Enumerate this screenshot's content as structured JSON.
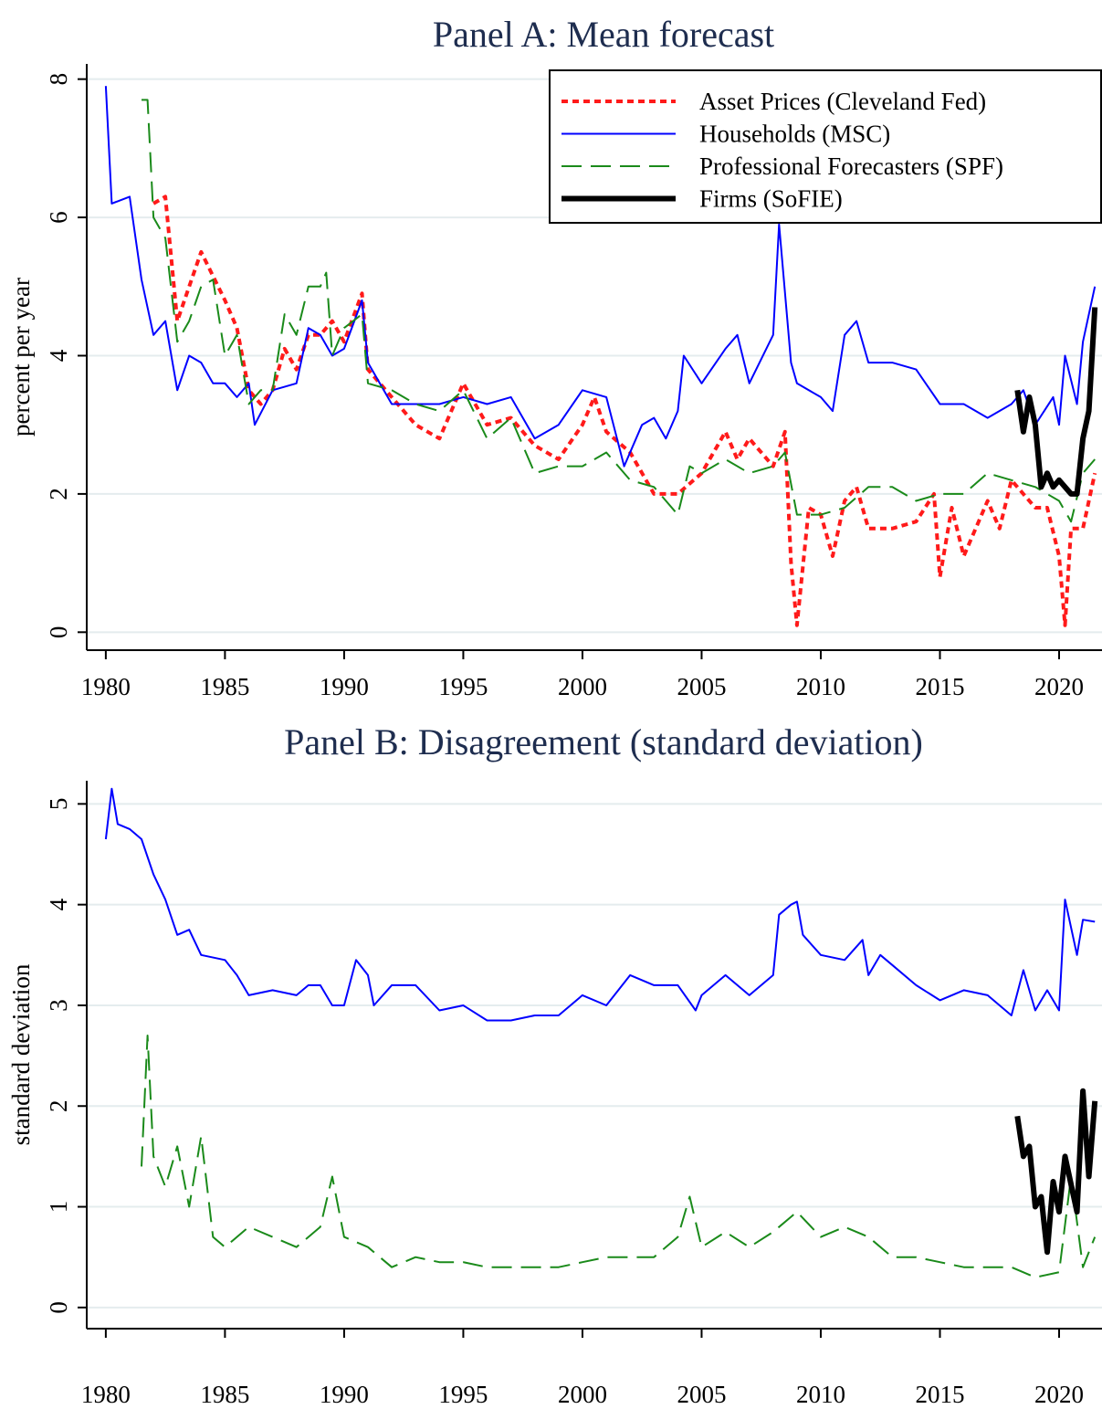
{
  "chart_data": [
    {
      "type": "line",
      "title": "Panel A: Mean forecast",
      "ylabel": "percent per year",
      "xlim": [
        1979.2,
        2021.8
      ],
      "xticks": [
        1980,
        1985,
        1990,
        1995,
        2000,
        2005,
        2010,
        2015,
        2020
      ],
      "ylim": [
        -0.26,
        8.22
      ],
      "yticks": [
        0,
        2,
        4,
        6,
        8
      ],
      "grid": true,
      "legend": "top-right",
      "series": [
        {
          "name": "Asset Prices (Cleveland Fed)",
          "color": "#ff1a1a",
          "linestyle": "dotted",
          "linewidth": 4,
          "x": [
            1982,
            1982.5,
            1983,
            1983.5,
            1984,
            1985,
            1985.5,
            1986,
            1986.5,
            1987,
            1987.5,
            1988,
            1988.5,
            1989,
            1989.5,
            1990,
            1990.75,
            1991,
            1992,
            1993,
            1994,
            1995,
            1996,
            1997,
            1998,
            1999,
            2000,
            2000.5,
            2001,
            2002,
            2003,
            2004,
            2005,
            2006,
            2006.5,
            2007,
            2008,
            2008.5,
            2008.75,
            2009,
            2009.5,
            2010,
            2010.5,
            2011,
            2011.5,
            2012,
            2013,
            2014,
            2014.75,
            2015,
            2015.5,
            2016,
            2017,
            2017.5,
            2018,
            2019,
            2019.5,
            2020,
            2020.25,
            2020.5,
            2021,
            2021.5
          ],
          "values": [
            6.2,
            6.3,
            4.5,
            5.0,
            5.5,
            4.8,
            4.4,
            3.5,
            3.3,
            3.5,
            4.1,
            3.8,
            4.3,
            4.3,
            4.5,
            4.2,
            4.9,
            3.8,
            3.4,
            3.0,
            2.8,
            3.6,
            3.0,
            3.1,
            2.7,
            2.5,
            3.0,
            3.4,
            2.9,
            2.6,
            2.0,
            2.0,
            2.3,
            2.9,
            2.5,
            2.8,
            2.4,
            2.9,
            1.0,
            0.1,
            1.8,
            1.7,
            1.1,
            1.9,
            2.1,
            1.5,
            1.5,
            1.6,
            2.0,
            0.8,
            1.8,
            1.1,
            1.9,
            1.5,
            2.2,
            1.8,
            1.8,
            1.1,
            0.1,
            1.5,
            1.5,
            2.3
          ]
        },
        {
          "name": "Households (MSC)",
          "color": "#0000ff",
          "linestyle": "solid",
          "linewidth": 2,
          "x": [
            1980,
            1980.25,
            1981,
            1981.5,
            1982,
            1982.5,
            1983,
            1983.5,
            1984,
            1984.5,
            1985,
            1985.5,
            1986,
            1986.25,
            1987,
            1988,
            1988.5,
            1989,
            1989.5,
            1990,
            1990.75,
            1991,
            1992,
            1993,
            1994,
            1995,
            1996,
            1997,
            1998,
            1999,
            2000,
            2001,
            2001.75,
            2002.5,
            2003,
            2003.5,
            2004,
            2004.25,
            2005,
            2006,
            2006.5,
            2007,
            2008,
            2008.25,
            2008.75,
            2009,
            2010,
            2010.5,
            2011,
            2011.5,
            2012,
            2013,
            2014,
            2015,
            2016,
            2017,
            2018,
            2018.5,
            2019,
            2019.75,
            2020,
            2020.25,
            2020.75,
            2021,
            2021.5
          ],
          "values": [
            7.9,
            6.2,
            6.3,
            5.1,
            4.3,
            4.5,
            3.5,
            4.0,
            3.9,
            3.6,
            3.6,
            3.4,
            3.6,
            3.0,
            3.5,
            3.6,
            4.4,
            4.3,
            4.0,
            4.1,
            4.8,
            3.9,
            3.3,
            3.3,
            3.3,
            3.4,
            3.3,
            3.4,
            2.8,
            3.0,
            3.5,
            3.4,
            2.4,
            3.0,
            3.1,
            2.8,
            3.2,
            4.0,
            3.6,
            4.1,
            4.3,
            3.6,
            4.3,
            5.9,
            3.9,
            3.6,
            3.4,
            3.2,
            4.3,
            4.5,
            3.9,
            3.9,
            3.8,
            3.3,
            3.3,
            3.1,
            3.3,
            3.5,
            3.0,
            3.4,
            3.0,
            4.0,
            3.3,
            4.2,
            5.0
          ]
        },
        {
          "name": "Professional Forecasters (SPF)",
          "color": "#1a8a1a",
          "linestyle": "dashed",
          "linewidth": 2,
          "x": [
            1981.5,
            1981.75,
            1982,
            1982.5,
            1983,
            1983.5,
            1984,
            1984.5,
            1985,
            1985.5,
            1986,
            1986.5,
            1987,
            1987.5,
            1988,
            1988.5,
            1989,
            1989.25,
            1989.5,
            1990,
            1990.75,
            1991,
            1992,
            1993,
            1994,
            1995,
            1996,
            1997,
            1998,
            1999,
            2000,
            2001,
            2002,
            2003,
            2004,
            2004.5,
            2005,
            2006,
            2007,
            2008,
            2008.5,
            2009,
            2010,
            2011,
            2012,
            2013,
            2014,
            2015,
            2016,
            2017,
            2018,
            2019,
            2020,
            2020.5,
            2021,
            2021.5
          ],
          "values": [
            7.7,
            7.7,
            6.0,
            5.7,
            4.2,
            4.5,
            5.0,
            5.1,
            4.0,
            4.3,
            3.3,
            3.5,
            3.5,
            4.6,
            4.3,
            5.0,
            5.0,
            5.2,
            4.0,
            4.4,
            4.6,
            3.6,
            3.5,
            3.3,
            3.2,
            3.5,
            2.8,
            3.1,
            2.3,
            2.4,
            2.4,
            2.6,
            2.2,
            2.1,
            1.7,
            2.4,
            2.3,
            2.5,
            2.3,
            2.4,
            2.6,
            1.7,
            1.7,
            1.8,
            2.1,
            2.1,
            1.9,
            2.0,
            2.0,
            2.3,
            2.2,
            2.1,
            1.9,
            1.6,
            2.3,
            2.5
          ]
        },
        {
          "name": "Firms (SoFIE)",
          "color": "#000000",
          "linestyle": "solid",
          "linewidth": 6,
          "x": [
            2018.25,
            2018.5,
            2018.75,
            2019,
            2019.25,
            2019.5,
            2019.75,
            2020,
            2020.5,
            2020.75,
            2021,
            2021.25,
            2021.5
          ],
          "values": [
            3.5,
            2.9,
            3.4,
            3.0,
            2.1,
            2.3,
            2.1,
            2.2,
            2.0,
            2.0,
            2.8,
            3.2,
            4.7
          ]
        }
      ]
    },
    {
      "type": "line",
      "title": "Panel B: Disagreement (standard deviation)",
      "ylabel": "standard deviation",
      "xlim": [
        1979.2,
        2021.8
      ],
      "xticks": [
        1980,
        1985,
        1990,
        1995,
        2000,
        2005,
        2010,
        2015,
        2020
      ],
      "ylim": [
        -0.21,
        5.23
      ],
      "yticks": [
        0,
        1,
        2,
        3,
        4,
        5
      ],
      "grid": true,
      "series": [
        {
          "color": "#0000ff",
          "linestyle": "solid",
          "linewidth": 2,
          "x": [
            1980,
            1980.25,
            1980.5,
            1981,
            1981.5,
            1982,
            1982.5,
            1983,
            1983.5,
            1984,
            1985,
            1985.5,
            1986,
            1987,
            1988,
            1988.5,
            1989,
            1989.5,
            1990,
            1990.5,
            1991,
            1991.25,
            1992,
            1993,
            1994,
            1995,
            1996,
            1997,
            1998,
            1999,
            2000,
            2001,
            2002,
            2003,
            2004,
            2004.75,
            2005,
            2006,
            2007,
            2008,
            2008.25,
            2008.75,
            2009,
            2009.25,
            2010,
            2011,
            2011.75,
            2012,
            2012.5,
            2013,
            2014,
            2015,
            2016,
            2017,
            2018,
            2018.5,
            2019,
            2019.5,
            2020,
            2020.25,
            2020.75,
            2021,
            2021.5
          ],
          "values": [
            4.65,
            5.15,
            4.8,
            4.75,
            4.65,
            4.3,
            4.05,
            3.7,
            3.75,
            3.5,
            3.45,
            3.3,
            3.1,
            3.15,
            3.1,
            3.2,
            3.2,
            3.0,
            3.0,
            3.45,
            3.3,
            3.0,
            3.2,
            3.2,
            2.95,
            3.0,
            2.85,
            2.85,
            2.9,
            2.9,
            3.1,
            3.0,
            3.3,
            3.2,
            3.2,
            2.95,
            3.1,
            3.3,
            3.1,
            3.3,
            3.9,
            4.0,
            4.03,
            3.7,
            3.5,
            3.45,
            3.65,
            3.3,
            3.5,
            3.4,
            3.2,
            3.05,
            3.15,
            3.1,
            2.9,
            3.35,
            2.95,
            3.15,
            2.95,
            4.05,
            3.5,
            3.85,
            3.83
          ]
        },
        {
          "color": "#1a8a1a",
          "linestyle": "dashed",
          "linewidth": 2,
          "x": [
            1981.5,
            1981.75,
            1982,
            1982.5,
            1983,
            1983.5,
            1984,
            1984.5,
            1985,
            1986,
            1987,
            1988,
            1989,
            1989.5,
            1990,
            1991,
            1992,
            1993,
            1994,
            1995,
            1996,
            1997,
            1998,
            1999,
            2000,
            2001,
            2002,
            2003,
            2004,
            2004.5,
            2005,
            2006,
            2007,
            2008,
            2009,
            2010,
            2011,
            2012,
            2013,
            2014,
            2015,
            2016,
            2017,
            2018,
            2019,
            2020,
            2020.5,
            2021,
            2021.5
          ],
          "values": [
            1.4,
            2.7,
            1.5,
            1.2,
            1.6,
            1.0,
            1.7,
            0.7,
            0.6,
            0.8,
            0.7,
            0.6,
            0.8,
            1.3,
            0.7,
            0.6,
            0.4,
            0.5,
            0.45,
            0.45,
            0.4,
            0.4,
            0.4,
            0.4,
            0.45,
            0.5,
            0.5,
            0.5,
            0.7,
            1.1,
            0.6,
            0.75,
            0.6,
            0.75,
            0.95,
            0.7,
            0.8,
            0.7,
            0.5,
            0.5,
            0.45,
            0.4,
            0.4,
            0.4,
            0.3,
            0.35,
            1.3,
            0.4,
            0.7
          ]
        },
        {
          "color": "#000000",
          "linestyle": "solid",
          "linewidth": 6,
          "x": [
            2018.25,
            2018.5,
            2018.75,
            2019,
            2019.25,
            2019.5,
            2019.75,
            2020,
            2020.25,
            2020.75,
            2021,
            2021.25,
            2021.5
          ],
          "values": [
            1.9,
            1.5,
            1.6,
            1.0,
            1.1,
            0.55,
            1.25,
            0.95,
            1.5,
            0.95,
            2.15,
            1.3,
            2.05
          ]
        }
      ]
    }
  ]
}
